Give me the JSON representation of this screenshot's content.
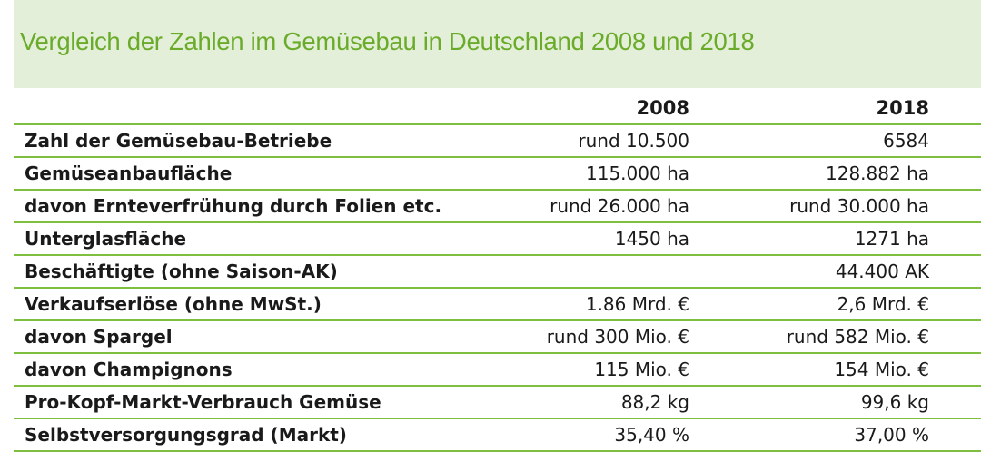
{
  "title": "Vergleich der Zahlen im Gemüsebau in Deutschland 2008 und 2018",
  "columns": [
    "",
    "2008",
    "2018"
  ],
  "rows": [
    {
      "label": "Zahl der Gemüsebau-Betriebe",
      "v2008": "rund 10.500",
      "v2018": "6584"
    },
    {
      "label": "Gemüseanbaufläche",
      "v2008": "115.000 ha",
      "v2018": "128.882 ha"
    },
    {
      "label": "davon Ernteverfrühung durch Folien etc.",
      "v2008": "rund 26.000 ha",
      "v2018": "rund 30.000 ha"
    },
    {
      "label": "Unterglasfläche",
      "v2008": "1450 ha",
      "v2018": "1271 ha"
    },
    {
      "label": "Beschäftigte (ohne Saison-AK)",
      "v2008": "",
      "v2018": "44.400 AK"
    },
    {
      "label": "Verkaufserlöse (ohne MwSt.)",
      "v2008": "1.86 Mrd. €",
      "v2018": "2,6 Mrd. €"
    },
    {
      "label": "davon Spargel",
      "v2008": "rund 300 Mio. €",
      "v2018": "rund 582 Mio. €"
    },
    {
      "label": "davon Champignons",
      "v2008": "115 Mio. €",
      "v2018": "154 Mio. €"
    },
    {
      "label": "Pro-Kopf-Markt-Verbrauch Gemüse",
      "v2008": "88,2 kg",
      "v2018": "99,6 kg"
    },
    {
      "label": "Selbstversorgungsgrad (Markt)",
      "v2008": "35,40 %",
      "v2018": "37,00 %"
    }
  ],
  "colors": {
    "banner_bg": "#e4efda",
    "title_green": "#6bab2a",
    "rule_green": "#7fbf3f"
  }
}
